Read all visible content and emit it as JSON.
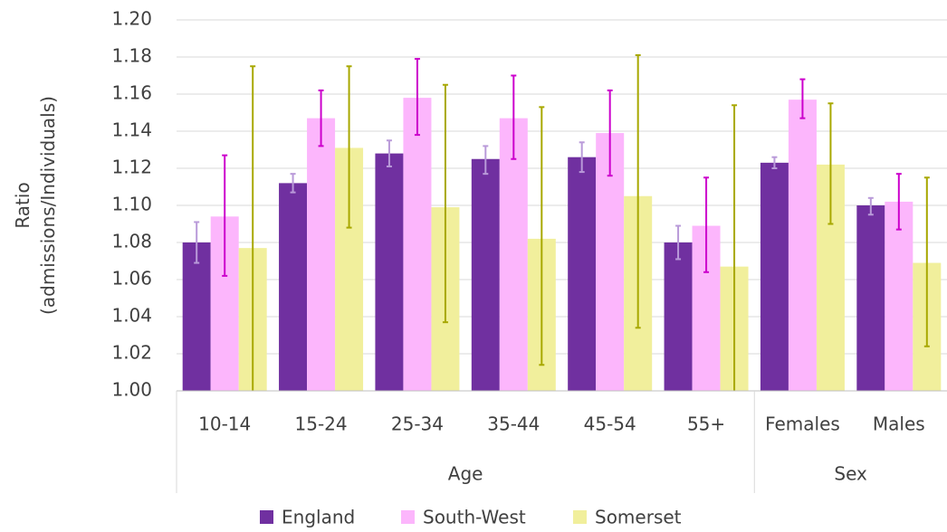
{
  "chart_data": {
    "type": "bar",
    "ylabel": [
      "Ratio",
      "(admissions/Individuals)"
    ],
    "groups": [
      {
        "name": "Age",
        "categories": [
          "10-14",
          "15-24",
          "25-34",
          "35-44",
          "45-54",
          "55+"
        ]
      },
      {
        "name": "Sex",
        "categories": [
          "Females",
          "Males"
        ]
      }
    ],
    "series": [
      {
        "name": "England",
        "color": "#7030a0",
        "error_color": "#b99ad9",
        "values": [
          1.08,
          1.112,
          1.128,
          1.125,
          1.126,
          1.08,
          1.123,
          1.1
        ],
        "error_low": [
          1.069,
          1.107,
          1.121,
          1.117,
          1.118,
          1.071,
          1.12,
          1.095
        ],
        "error_high": [
          1.091,
          1.117,
          1.135,
          1.132,
          1.134,
          1.089,
          1.126,
          1.104
        ]
      },
      {
        "name": "South-West",
        "color": "#fcb6fc",
        "error_color": "#cc00cc",
        "values": [
          1.094,
          1.147,
          1.158,
          1.147,
          1.139,
          1.089,
          1.157,
          1.102
        ],
        "error_low": [
          1.062,
          1.132,
          1.138,
          1.125,
          1.116,
          1.064,
          1.147,
          1.087
        ],
        "error_high": [
          1.127,
          1.162,
          1.179,
          1.17,
          1.162,
          1.115,
          1.168,
          1.117
        ]
      },
      {
        "name": "Somerset",
        "color": "#f1ef9c",
        "error_color": "#a8a800",
        "values": [
          1.077,
          1.131,
          1.099,
          1.082,
          1.105,
          1.067,
          1.122,
          1.069
        ],
        "error_low": [
          0.98,
          1.088,
          1.037,
          1.014,
          1.034,
          0.98,
          1.09,
          1.024
        ],
        "error_high": [
          1.175,
          1.175,
          1.165,
          1.153,
          1.181,
          1.154,
          1.155,
          1.115
        ]
      }
    ],
    "ylim": [
      1.0,
      1.2
    ],
    "yticks": [
      {
        "value": 1.0,
        "label": "1.00"
      },
      {
        "value": 1.02,
        "label": "1.02"
      },
      {
        "value": 1.04,
        "label": "1.04"
      },
      {
        "value": 1.06,
        "label": "1.06"
      },
      {
        "value": 1.08,
        "label": "1.08"
      },
      {
        "value": 1.1,
        "label": "1.10"
      },
      {
        "value": 1.12,
        "label": "1.12"
      },
      {
        "value": 1.14,
        "label": "1.14"
      },
      {
        "value": 1.16,
        "label": "1.16"
      },
      {
        "value": 1.18,
        "label": "1.18"
      },
      {
        "value": 1.2,
        "label": "1.20"
      }
    ],
    "grid": true,
    "legend": "bottom"
  }
}
